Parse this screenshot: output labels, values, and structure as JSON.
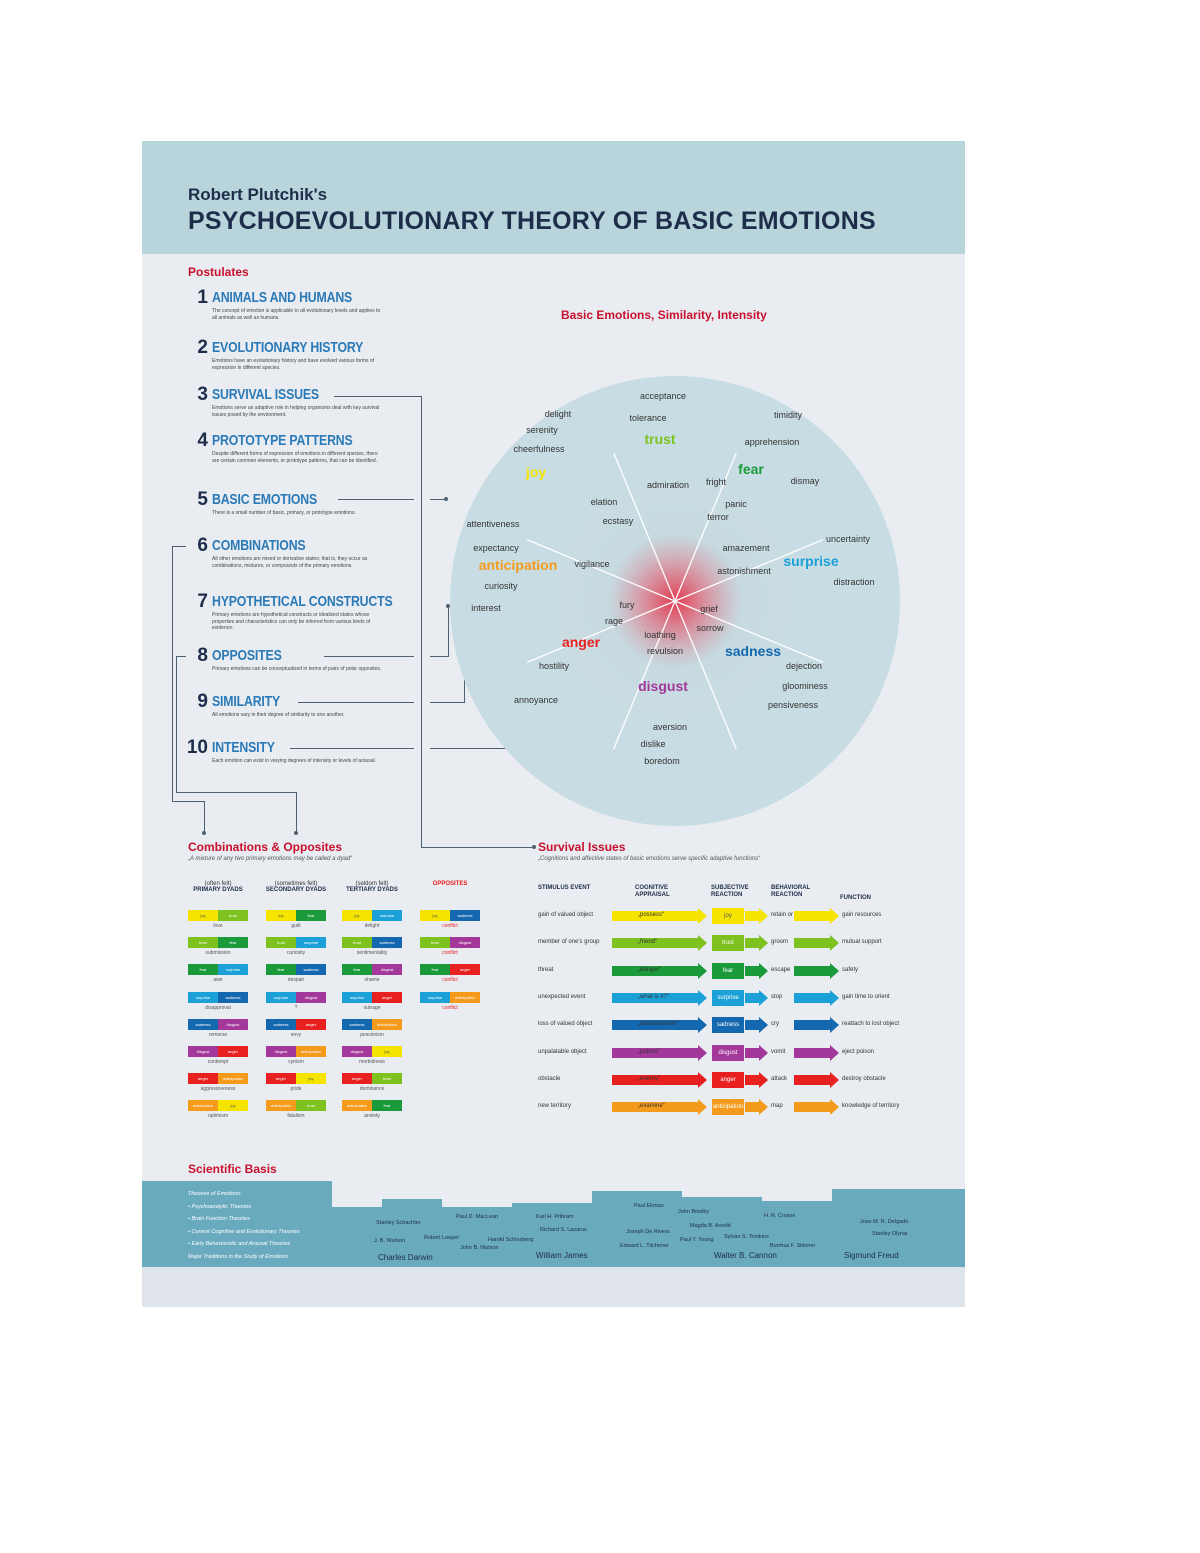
{
  "header": {
    "subtitle": "Robert Plutchik's",
    "title": "PSYCHOEVOLUTIONARY THEORY OF BASIC EMOTIONS"
  },
  "colors": {
    "joy": "#f4e400",
    "trust": "#7dc21e",
    "fear": "#1a9a3a",
    "surprise": "#1ba0d8",
    "sadness": "#1468b0",
    "disgust": "#a3379a",
    "anger": "#e8201f",
    "anticipation": "#f59b1c"
  },
  "postulates_title": "Postulates",
  "postulates": [
    {
      "num": "1",
      "title": "ANIMALS AND HUMANS",
      "desc": "The concept of emotion is applicable to all evolutionary levels and applies to all animals as well as humans."
    },
    {
      "num": "2",
      "title": "EVOLUTIONARY HISTORY",
      "desc": "Emotions have an evolutionary history and have evolved various forms of expression in different species."
    },
    {
      "num": "3",
      "title": "SURVIVAL ISSUES",
      "desc": "Emotions serve an adaptive role in helping organisms deal with key survival issues posed by the environment."
    },
    {
      "num": "4",
      "title": "PROTOTYPE PATTERNS",
      "desc": "Despite different forms of expression of emotions in different species, there are certain common elements, or prototype patterns, that can be identified."
    },
    {
      "num": "5",
      "title": "BASIC EMOTIONS",
      "desc": "There is a small number of basic, primary, or prototype emotions."
    },
    {
      "num": "6",
      "title": "COMBINATIONS",
      "desc": "All other emotions are mixed or derivative states; that is, they occur as combinations, mixtures, or compounds of the primary emotions."
    },
    {
      "num": "7",
      "title": "HYPOTHETICAL CONSTRUCTS",
      "desc": "Primary emotions are hypothetical constructs or idealized states whose properties and characteristics can only be inferred from various kinds of evidence."
    },
    {
      "num": "8",
      "title": "OPPOSITES",
      "desc": "Primary emotions can be conceptualized in terms of pairs of polar opposites."
    },
    {
      "num": "9",
      "title": "SIMILARITY",
      "desc": "All emotions vary in their degree of similarity to one another."
    },
    {
      "num": "10",
      "title": "INTENSITY",
      "desc": "Each emotion can exist in varying degrees of intensity or levels of arousal."
    }
  ],
  "wheel": {
    "title": "Basic Emotions, Similarity, Intensity",
    "sectors": [
      {
        "basic": "joy",
        "words": [
          "delight",
          "serenity",
          "cheerfulness",
          "elation",
          "ecstasy"
        ]
      },
      {
        "basic": "trust",
        "words": [
          "acceptance",
          "tolerance",
          "admiration"
        ]
      },
      {
        "basic": "fear",
        "words": [
          "timidity",
          "apprehension",
          "dismay",
          "fright",
          "panic",
          "terror"
        ]
      },
      {
        "basic": "surprise",
        "words": [
          "uncertainty",
          "amazement",
          "astonishment",
          "distraction"
        ]
      },
      {
        "basic": "sadness",
        "words": [
          "grief",
          "sorrow",
          "dejection",
          "gloominess",
          "pensiveness"
        ]
      },
      {
        "basic": "disgust",
        "words": [
          "loathing",
          "revulsion",
          "aversion",
          "dislike",
          "boredom"
        ]
      },
      {
        "basic": "anger",
        "words": [
          "fury",
          "rage",
          "hostility",
          "annoyance"
        ]
      },
      {
        "basic": "anticipation",
        "words": [
          "attentiveness",
          "expectancy",
          "vigilance",
          "curiosity",
          "interest"
        ]
      }
    ]
  },
  "combinations": {
    "title": "Combinations & Opposites",
    "quote": "„A mixture of any two primary emotions may be called a dyad“",
    "columns": [
      {
        "note": "(often felt)",
        "head": "PRIMARY DYADS"
      },
      {
        "note": "(sometimes felt)",
        "head": "SECONDARY DYADS"
      },
      {
        "note": "(seldom felt)",
        "head": "TERTIARY DYADS"
      },
      {
        "note": "",
        "head": "OPPOSITES"
      }
    ],
    "primary": [
      {
        "a": "joy",
        "b": "trust",
        "r": "love"
      },
      {
        "a": "trust",
        "b": "fear",
        "r": "submission"
      },
      {
        "a": "fear",
        "b": "surprise",
        "r": "awe"
      },
      {
        "a": "surprise",
        "b": "sadness",
        "r": "disapproval"
      },
      {
        "a": "sadness",
        "b": "disgust",
        "r": "remorse"
      },
      {
        "a": "disgust",
        "b": "anger",
        "r": "contempt"
      },
      {
        "a": "anger",
        "b": "anticipation",
        "r": "aggressiveness"
      },
      {
        "a": "anticipation",
        "b": "joy",
        "r": "optimism"
      }
    ],
    "secondary": [
      {
        "a": "joy",
        "b": "fear",
        "r": "guilt"
      },
      {
        "a": "trust",
        "b": "surprise",
        "r": "curiosity"
      },
      {
        "a": "fear",
        "b": "sadness",
        "r": "despair"
      },
      {
        "a": "surprise",
        "b": "disgust",
        "r": "?"
      },
      {
        "a": "sadness",
        "b": "anger",
        "r": "envy"
      },
      {
        "a": "disgust",
        "b": "anticipation",
        "r": "cynism"
      },
      {
        "a": "anger",
        "b": "joy",
        "r": "pride"
      },
      {
        "a": "anticipation",
        "b": "trust",
        "r": "fatalism"
      }
    ],
    "tertiary": [
      {
        "a": "joy",
        "b": "surprise",
        "r": "delight"
      },
      {
        "a": "trust",
        "b": "sadness",
        "r": "sentimentality"
      },
      {
        "a": "fear",
        "b": "disgust",
        "r": "shame"
      },
      {
        "a": "surprise",
        "b": "anger",
        "r": "outrage"
      },
      {
        "a": "sadness",
        "b": "anticipation",
        "r": "pessimism"
      },
      {
        "a": "disgust",
        "b": "joy",
        "r": "morbidness"
      },
      {
        "a": "anger",
        "b": "trust",
        "r": "dominance"
      },
      {
        "a": "anticipation",
        "b": "fear",
        "r": "anxiety"
      }
    ],
    "opposites": [
      {
        "a": "joy",
        "b": "sadness",
        "r": "conflict"
      },
      {
        "a": "trust",
        "b": "disgust",
        "r": "conflict"
      },
      {
        "a": "fear",
        "b": "anger",
        "r": "conflict"
      },
      {
        "a": "surprise",
        "b": "anticipation",
        "r": "conflict"
      }
    ]
  },
  "survival": {
    "title": "Survival Issues",
    "quote": "„Cognitions and affective states of basic emotions serve specific adaptive functions“",
    "headers": [
      "STIMULUS EVENT",
      "COGNITIVE APPRAISAL",
      "SUBJECTIVE REACTION",
      "BEHAVIORAL REACTION",
      "FUNCTION"
    ],
    "rows": [
      {
        "stimulus": "gain of valued object",
        "cognition": "„possess“",
        "emotion": "joy",
        "behavior": "retain or repeat",
        "function": "gain resources"
      },
      {
        "stimulus": "member of one's group",
        "cognition": "„friend“",
        "emotion": "trust",
        "behavior": "groom",
        "function": "mutual support"
      },
      {
        "stimulus": "threat",
        "cognition": "„danger“",
        "emotion": "fear",
        "behavior": "escape",
        "function": "safety"
      },
      {
        "stimulus": "unexpected event",
        "cognition": "„what is it?“",
        "emotion": "surprise",
        "behavior": "stop",
        "function": "gain time to orient"
      },
      {
        "stimulus": "loss of valued object",
        "cognition": "„abandonment“",
        "emotion": "sadness",
        "behavior": "cry",
        "function": "reattach to lost object"
      },
      {
        "stimulus": "unpalatable object",
        "cognition": "„poison“",
        "emotion": "disgust",
        "behavior": "vomit",
        "function": "eject poison"
      },
      {
        "stimulus": "obstacle",
        "cognition": "„enemy“",
        "emotion": "anger",
        "behavior": "attack",
        "function": "destroy obstacle"
      },
      {
        "stimulus": "new territory",
        "cognition": "„examine“",
        "emotion": "anticipation",
        "behavior": "map",
        "function": "knowledge of territory"
      }
    ]
  },
  "scientific": {
    "title": "Scientific Basis",
    "theories": [
      "Theories of Emotions:",
      "• Psychoanalytic Theories",
      "• Brain Function Theories",
      "• Current Cognitive and Evolutionary Theories",
      "• Early Behavioristic and Arousal Theories",
      "Major Traditions in the Study of Emotions"
    ],
    "names": [
      "Stanley Schachter",
      "J. B. Watson",
      "Charles Darwin",
      "Robert Leeper",
      "John B. Watson",
      "Paul D. MacLean",
      "Richard S. Lazarus",
      "Harold Schlosberg",
      "Karl H. Pribram",
      "Magda B. Arnold",
      "William James",
      "Paul Ekman",
      "Joseph De Rivera",
      "Edward L. Titchener",
      "John Bowlby",
      "Paul T. Young",
      "Sylvan S. Tomkins",
      "Walter B. Cannon",
      "H. R. Crosse",
      "Burrhus F. Skinner",
      "Jose M. R. Delgado",
      "Stanley Olynai",
      "Sigmund Freud"
    ],
    "big_names": [
      "Charles Darwin",
      "William James",
      "Walter B. Cannon",
      "Sigmund Freud"
    ]
  }
}
